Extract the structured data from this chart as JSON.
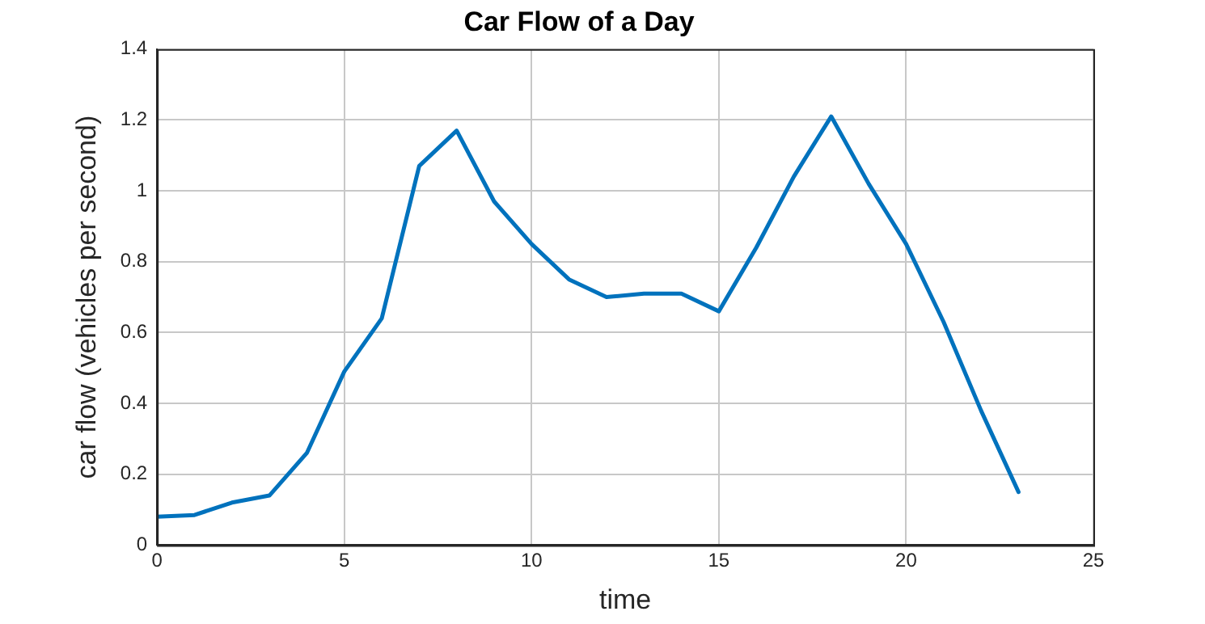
{
  "chart_data": {
    "type": "line",
    "title": "Car Flow of a Day",
    "xlabel": "time",
    "ylabel": "car flow (vehicles per second)",
    "x": [
      0,
      1,
      2,
      3,
      4,
      5,
      6,
      7,
      8,
      9,
      10,
      11,
      12,
      13,
      14,
      15,
      16,
      17,
      18,
      19,
      20,
      21,
      22,
      23
    ],
    "series": [
      {
        "color": "#0072bd",
        "values": [
          0.08,
          0.085,
          0.12,
          0.14,
          0.26,
          0.49,
          0.64,
          1.07,
          1.17,
          0.97,
          0.85,
          0.75,
          0.7,
          0.71,
          0.71,
          0.66,
          0.84,
          1.04,
          1.21,
          1.02,
          0.85,
          0.63,
          0.38,
          0.15
        ]
      }
    ],
    "xlim": [
      0,
      25
    ],
    "xticks": [
      0,
      5,
      10,
      15,
      20,
      25
    ],
    "ylim": [
      0,
      1.4
    ],
    "yticks": [
      0,
      0.2,
      0.4,
      0.6,
      0.8,
      1,
      1.2,
      1.4
    ],
    "grid": true,
    "line_style": "solid",
    "marker": "none",
    "legend": false
  }
}
